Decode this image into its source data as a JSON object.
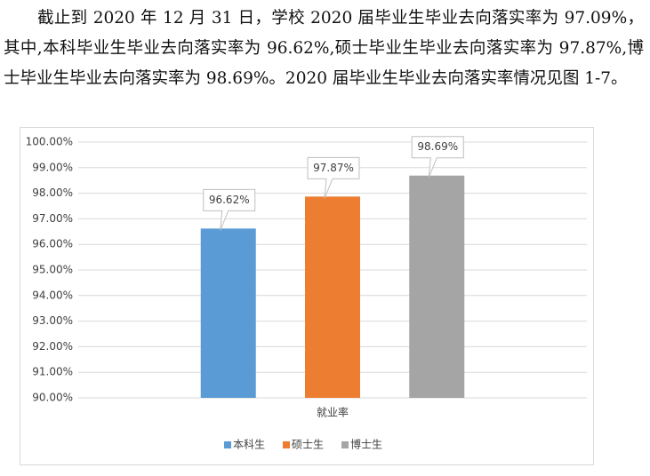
{
  "paragraph": "截止到 2020 年 12 月 31 日，学校 2020 届毕业生毕业去向落实率为 97.09%，其中,本科毕业生毕业去向落实率为 96.62%,硕士毕业生毕业去向落实率为 97.87%,博士毕业生毕业去向落实率为 98.69%。2020 届毕业生毕业去向落实率情况见图 1-7。",
  "chart_data": {
    "type": "bar",
    "categories": [
      "就业率"
    ],
    "series": [
      {
        "name": "本科生",
        "color": "#5b9bd5",
        "values": [
          96.62
        ],
        "value_labels": [
          "96.62%"
        ]
      },
      {
        "name": "硕士生",
        "color": "#ed7d31",
        "values": [
          97.87
        ],
        "value_labels": [
          "97.87%"
        ]
      },
      {
        "name": "博士生",
        "color": "#a5a5a5",
        "values": [
          98.69
        ],
        "value_labels": [
          "98.69%"
        ]
      }
    ],
    "ylim": [
      90,
      100
    ],
    "yticks": [
      {
        "value": 90,
        "label": "90.00%"
      },
      {
        "value": 91,
        "label": "91.00%"
      },
      {
        "value": 92,
        "label": "92.00%"
      },
      {
        "value": 93,
        "label": "93.00%"
      },
      {
        "value": 94,
        "label": "94.00%"
      },
      {
        "value": 95,
        "label": "95.00%"
      },
      {
        "value": 96,
        "label": "96.00%"
      },
      {
        "value": 97,
        "label": "97.00%"
      },
      {
        "value": 98,
        "label": "98.00%"
      },
      {
        "value": 99,
        "label": "99.00%"
      },
      {
        "value": 100,
        "label": "100.00%"
      }
    ],
    "grid": true,
    "legend": "bottom"
  }
}
